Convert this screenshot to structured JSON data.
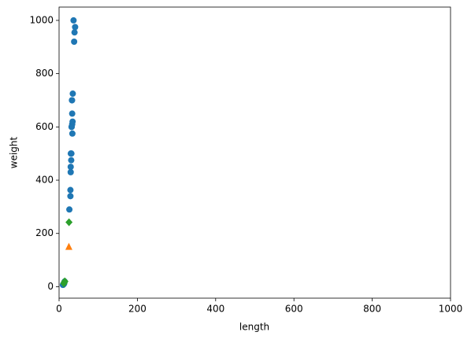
{
  "chart_data": {
    "type": "scatter",
    "xlabel": "length",
    "ylabel": "weight",
    "xlim": [
      0,
      1000
    ],
    "ylim": [
      -43,
      1050
    ],
    "xticks": [
      0,
      200,
      400,
      600,
      800,
      1000
    ],
    "yticks": [
      0,
      200,
      400,
      600,
      800,
      1000
    ],
    "series": [
      {
        "color": "#1f77b4",
        "marker": "circle",
        "x": [
          26.3,
          29.0,
          29.0,
          29.7,
          29.7,
          30.0,
          31.0,
          31.5,
          32.0,
          32.0,
          33.5,
          34.0,
          34.5,
          33.5,
          33.0,
          33.0,
          35.0,
          38.5,
          39.5,
          41.0,
          37.0,
          9.8,
          10.5,
          11.0,
          11.2,
          11.8,
          12.0,
          13.0,
          14.3
        ],
        "y": [
          290,
          340,
          363,
          430,
          450,
          500,
          475,
          500,
          600,
          600,
          610,
          575,
          620,
          650,
          700,
          700,
          725,
          920,
          955,
          975,
          1000,
          6.7,
          7.5,
          9.7,
          9.8,
          10.0,
          9.8,
          12.2,
          19.7
        ]
      },
      {
        "color": "#ff7f0e",
        "marker": "triangle",
        "x": [
          25
        ],
        "y": [
          150
        ]
      },
      {
        "color": "#2ca02c",
        "marker": "diamond",
        "x": [
          25.4,
          12.2,
          12.4,
          14.3,
          15.0
        ],
        "y": [
          242,
          12.2,
          13.4,
          19.7,
          19.9
        ]
      }
    ]
  }
}
